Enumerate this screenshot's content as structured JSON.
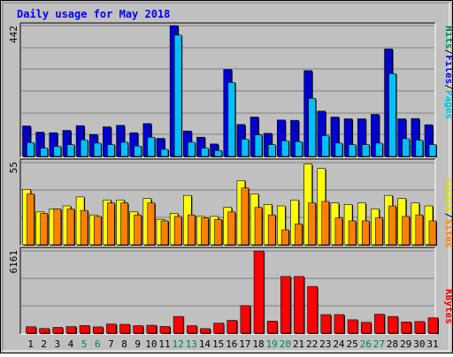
{
  "title": "Daily usage for May 2018",
  "days": [
    "1",
    "2",
    "3",
    "4",
    "5",
    "6",
    "7",
    "8",
    "9",
    "10",
    "11",
    "12",
    "13",
    "14",
    "15",
    "16",
    "17",
    "18",
    "19",
    "20",
    "21",
    "22",
    "23",
    "24",
    "25",
    "26",
    "27",
    "28",
    "29",
    "30",
    "31"
  ],
  "weekend_days": [
    "5",
    "6",
    "12",
    "13",
    "19",
    "20",
    "26",
    "27"
  ],
  "legend": {
    "hits": "Hits",
    "files": "Files",
    "pages": "Pages",
    "visits": "Visits",
    "sites": "Sites",
    "kbytes": "KBytes",
    "sep": "/"
  },
  "colors": {
    "hits": "#00805c",
    "files": "#0000ff",
    "pages": "#00ffff",
    "visits": "#ffff00",
    "sites": "#ff8000",
    "kbytes": "#ff0000",
    "weekend": "#00805c",
    "title": "#0000ff",
    "bg": "#c0c0c0"
  },
  "chart_data": [
    {
      "type": "bar",
      "title": "Daily usage for May 2018",
      "ymax_label": "442",
      "ylim": [
        0,
        442
      ],
      "categories": [
        "1",
        "2",
        "3",
        "4",
        "5",
        "6",
        "7",
        "8",
        "9",
        "10",
        "11",
        "12",
        "13",
        "14",
        "15",
        "16",
        "17",
        "18",
        "19",
        "20",
        "21",
        "22",
        "23",
        "24",
        "25",
        "26",
        "27",
        "28",
        "29",
        "30",
        "31"
      ],
      "series": [
        {
          "name": "Hits",
          "values": [
            103,
            82,
            80,
            88,
            104,
            74,
            100,
            105,
            80,
            111,
            61,
            442,
            86,
            65,
            42,
            294,
            108,
            133,
            78,
            123,
            122,
            290,
            153,
            133,
            127,
            127,
            142,
            363,
            127,
            128,
            107
          ]
        },
        {
          "name": "Files",
          "values": [
            103,
            82,
            80,
            88,
            104,
            74,
            100,
            105,
            80,
            111,
            61,
            442,
            86,
            65,
            42,
            294,
            108,
            133,
            78,
            123,
            122,
            290,
            153,
            133,
            127,
            127,
            142,
            363,
            127,
            128,
            107
          ]
        },
        {
          "name": "Pages",
          "values": [
            47,
            28,
            34,
            40,
            56,
            45,
            40,
            48,
            35,
            65,
            24,
            410,
            48,
            28,
            20,
            250,
            58,
            73,
            40,
            53,
            50,
            196,
            70,
            45,
            40,
            40,
            45,
            280,
            60,
            55,
            40
          ]
        }
      ]
    },
    {
      "type": "bar",
      "ymax_label": "55",
      "ylim": [
        0,
        55
      ],
      "categories": [
        "1",
        "2",
        "3",
        "4",
        "5",
        "6",
        "7",
        "8",
        "9",
        "10",
        "11",
        "12",
        "13",
        "14",
        "15",
        "16",
        "17",
        "18",
        "19",
        "20",
        "21",
        "22",
        "23",
        "24",
        "25",
        "26",
        "27",
        "28",
        "29",
        "30",
        "31"
      ],
      "series": [
        {
          "name": "Visits",
          "values": [
            37,
            22,
            24,
            26,
            32,
            20,
            30,
            30,
            22,
            31,
            17,
            21,
            33,
            19,
            19,
            25,
            43,
            34,
            27,
            26,
            30,
            54,
            51,
            28,
            27,
            28,
            24,
            33,
            31,
            28,
            26
          ]
        },
        {
          "name": "Sites",
          "values": [
            34,
            21,
            24,
            24,
            23,
            19,
            28,
            28,
            20,
            28,
            16,
            19,
            20,
            18,
            17,
            22,
            38,
            25,
            20,
            10,
            14,
            28,
            29,
            18,
            16,
            16,
            18,
            26,
            19,
            20,
            16
          ]
        }
      ]
    },
    {
      "type": "bar",
      "ymax_label": "6161",
      "ylim": [
        0,
        6161
      ],
      "categories": [
        "1",
        "2",
        "3",
        "4",
        "5",
        "6",
        "7",
        "8",
        "9",
        "10",
        "11",
        "12",
        "13",
        "14",
        "15",
        "16",
        "17",
        "18",
        "19",
        "20",
        "21",
        "22",
        "23",
        "24",
        "25",
        "26",
        "27",
        "28",
        "29",
        "30",
        "31"
      ],
      "series": [
        {
          "name": "KBytes",
          "values": [
            480,
            350,
            430,
            490,
            570,
            470,
            680,
            660,
            560,
            590,
            500,
            1250,
            560,
            340,
            750,
            960,
            2060,
            6161,
            900,
            4250,
            4250,
            3500,
            1390,
            1390,
            1000,
            810,
            1420,
            1250,
            840,
            870,
            1150
          ]
        }
      ]
    }
  ]
}
